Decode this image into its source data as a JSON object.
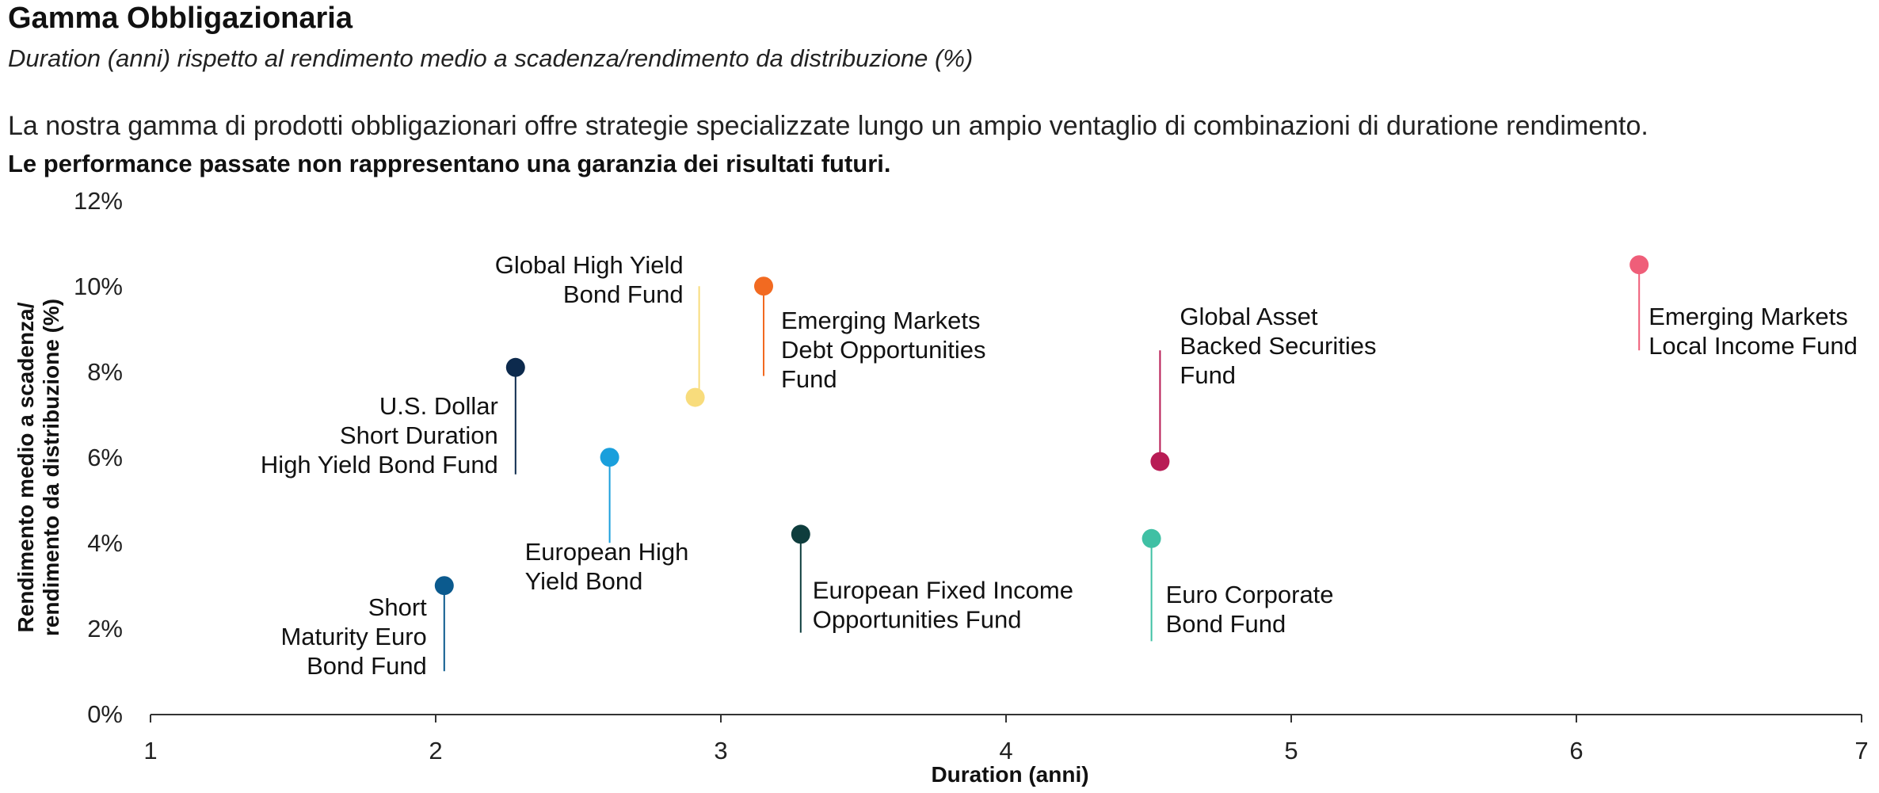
{
  "header": {
    "title": "Gamma Obbligazionaria",
    "subtitle": "Duration (anni) rispetto al rendimento medio a scadenza/rendimento da distribuzione (%)",
    "description": "La nostra gamma di prodotti obbligazionari offre strategie specializzate lungo un ampio ventaglio di combinazioni di duratione rendimento.",
    "disclaimer": "Le performance passate non rappresentano una garanzia dei risultati futuri."
  },
  "chart_data": {
    "type": "scatter",
    "xlabel": "Duration (anni)",
    "ylabel_lines": [
      "Rendimento medio a scadenza/",
      "rendimento da distribuzione (%)"
    ],
    "xlim": [
      1,
      7
    ],
    "ylim": [
      0,
      12
    ],
    "x_ticks": [
      "1",
      "2",
      "3",
      "4",
      "5",
      "6",
      "7"
    ],
    "y_ticks": [
      "0%",
      "2%",
      "4%",
      "6%",
      "8%",
      "10%",
      "12%"
    ],
    "grid": false,
    "points": [
      {
        "name_lines": [
          "Short",
          "Maturity Euro",
          "Bond Fund"
        ],
        "x": 2.03,
        "y": 3.2,
        "color": "#0b5a8e"
      },
      {
        "name_lines": [
          "U.S. Dollar",
          "Short Duration",
          "High Yield Bond Fund"
        ],
        "x": 2.28,
        "y": 8.3,
        "color": "#0d2a4d"
      },
      {
        "name_lines": [
          "European High",
          "Yield Bond"
        ],
        "x": 2.61,
        "y": 6.2,
        "color": "#1a9fdc"
      },
      {
        "name_lines": [
          "Global High Yield",
          "Bond Fund"
        ],
        "x": 2.91,
        "y": 7.6,
        "color": "#f8dc7c"
      },
      {
        "name_lines": [
          "Emerging Markets",
          "Debt Opportunities",
          "Fund"
        ],
        "x": 3.15,
        "y": 10.2,
        "color": "#f26a21"
      },
      {
        "name_lines": [
          "European Fixed Income",
          "Opportunities Fund"
        ],
        "x": 3.28,
        "y": 4.4,
        "color": "#0e3d3d"
      },
      {
        "name_lines": [
          "Euro Corporate",
          "Bond Fund"
        ],
        "x": 4.51,
        "y": 4.3,
        "color": "#3fc0a4"
      },
      {
        "name_lines": [
          "Global Asset",
          "Backed Securities",
          "Fund"
        ],
        "x": 4.54,
        "y": 6.1,
        "color": "#b81c55"
      },
      {
        "name_lines": [
          "Emerging Markets",
          "Local Income Fund"
        ],
        "x": 6.22,
        "y": 10.7,
        "color": "#ef5e79"
      }
    ]
  }
}
